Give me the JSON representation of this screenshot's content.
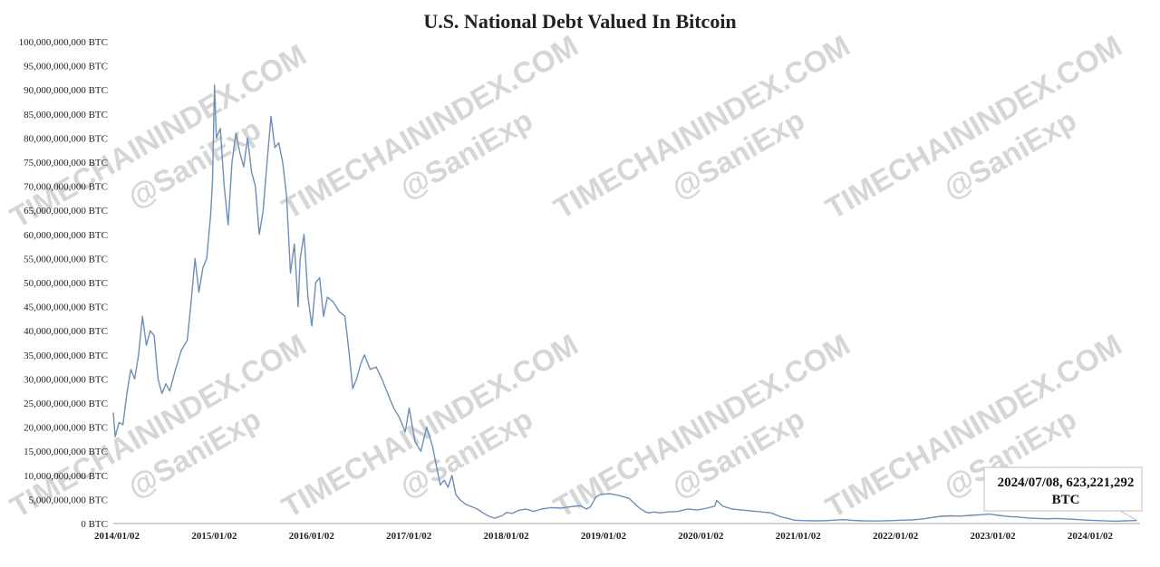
{
  "watermarks": {
    "site": "TIMECHAININDEX.COM",
    "handle": "@SaniExp"
  },
  "chart_data": {
    "type": "line",
    "title": "U.S. National Debt Valued In Bitcoin",
    "xlabel": "",
    "ylabel": "",
    "ylim": [
      0,
      100000000000
    ],
    "y_unit": "BTC",
    "grid": false,
    "legend": "none",
    "line_color": "#6e8fb3",
    "x_ticks": [
      "2014/01/02",
      "2015/01/02",
      "2016/01/02",
      "2017/01/02",
      "2018/01/02",
      "2019/01/02",
      "2020/01/02",
      "2021/01/02",
      "2022/01/02",
      "2023/01/02",
      "2024/01/02"
    ],
    "y_ticks": [
      "0 BTC",
      "5,000,000,000 BTC",
      "10,000,000,000 BTC",
      "15,000,000,000 BTC",
      "20,000,000,000 BTC",
      "25,000,000,000 BTC",
      "30,000,000,000 BTC",
      "35,000,000,000 BTC",
      "40,000,000,000 BTC",
      "45,000,000,000 BTC",
      "50,000,000,000 BTC",
      "55,000,000,000 BTC",
      "60,000,000,000 BTC",
      "65,000,000,000 BTC",
      "70,000,000,000 BTC",
      "75,000,000,000 BTC",
      "80,000,000,000 BTC",
      "85,000,000,000 BTC",
      "90,000,000,000 BTC",
      "95,000,000,000 BTC",
      "100,000,000,000 BTC"
    ],
    "x": [
      2014.0,
      2014.02,
      2014.06,
      2014.1,
      2014.14,
      2014.18,
      2014.22,
      2014.26,
      2014.3,
      2014.34,
      2014.38,
      2014.42,
      2014.46,
      2014.5,
      2014.54,
      2014.58,
      2014.64,
      2014.7,
      2014.76,
      2014.8,
      2014.84,
      2014.88,
      2014.92,
      2014.96,
      2015.0,
      2015.02,
      2015.04,
      2015.06,
      2015.1,
      2015.14,
      2015.18,
      2015.22,
      2015.26,
      2015.3,
      2015.34,
      2015.38,
      2015.42,
      2015.46,
      2015.5,
      2015.54,
      2015.58,
      2015.62,
      2015.66,
      2015.7,
      2015.74,
      2015.78,
      2015.82,
      2015.86,
      2015.9,
      2015.92,
      2015.96,
      2016.0,
      2016.04,
      2016.08,
      2016.12,
      2016.16,
      2016.2,
      2016.26,
      2016.32,
      2016.38,
      2016.42,
      2016.46,
      2016.5,
      2016.54,
      2016.58,
      2016.64,
      2016.7,
      2016.76,
      2016.82,
      2016.88,
      2016.94,
      2017.0,
      2017.04,
      2017.1,
      2017.16,
      2017.22,
      2017.28,
      2017.32,
      2017.36,
      2017.4,
      2017.44,
      2017.48,
      2017.52,
      2017.56,
      2017.62,
      2017.68,
      2017.74,
      2017.8,
      2017.86,
      2017.92,
      2017.96,
      2018.0,
      2018.04,
      2018.1,
      2018.16,
      2018.24,
      2018.32,
      2018.4,
      2018.5,
      2018.6,
      2018.7,
      2018.8,
      2018.86,
      2018.9,
      2018.96,
      2019.0,
      2019.1,
      2019.2,
      2019.3,
      2019.4,
      2019.46,
      2019.5,
      2019.56,
      2019.62,
      2019.7,
      2019.8,
      2019.9,
      2020.0,
      2020.1,
      2020.18,
      2020.2,
      2020.26,
      2020.36,
      2020.46,
      2020.56,
      2020.66,
      2020.76,
      2020.86,
      2020.94,
      2021.0,
      2021.1,
      2021.2,
      2021.3,
      2021.4,
      2021.5,
      2021.6,
      2021.7,
      2021.8,
      2021.9,
      2022.0,
      2022.1,
      2022.2,
      2022.3,
      2022.4,
      2022.5,
      2022.6,
      2022.7,
      2022.8,
      2022.9,
      2023.0,
      2023.1,
      2023.2,
      2023.3,
      2023.4,
      2023.5,
      2023.6,
      2023.7,
      2023.8,
      2023.9,
      2024.0,
      2024.1,
      2024.2,
      2024.3,
      2024.4,
      2024.45,
      2024.52
    ],
    "values": [
      23000000000,
      18000000000,
      21000000000,
      20500000000,
      27000000000,
      32000000000,
      30000000000,
      35000000000,
      43000000000,
      37000000000,
      40000000000,
      39000000000,
      30000000000,
      27000000000,
      29000000000,
      27500000000,
      32000000000,
      36000000000,
      38000000000,
      46000000000,
      55000000000,
      48000000000,
      53000000000,
      55000000000,
      64000000000,
      71000000000,
      91000000000,
      80000000000,
      82000000000,
      70000000000,
      62000000000,
      75000000000,
      81000000000,
      77000000000,
      74000000000,
      80000000000,
      73000000000,
      70000000000,
      60000000000,
      65000000000,
      75000000000,
      84500000000,
      78000000000,
      79000000000,
      75000000000,
      68000000000,
      52000000000,
      58000000000,
      45000000000,
      55000000000,
      60000000000,
      47000000000,
      41000000000,
      50000000000,
      51000000000,
      43000000000,
      47000000000,
      46000000000,
      44000000000,
      43000000000,
      36000000000,
      28000000000,
      30000000000,
      33000000000,
      35000000000,
      32000000000,
      32500000000,
      30000000000,
      27000000000,
      24000000000,
      22000000000,
      19000000000,
      24000000000,
      17000000000,
      15000000000,
      20000000000,
      16000000000,
      12000000000,
      8000000000,
      9000000000,
      7500000000,
      10000000000,
      6000000000,
      5000000000,
      4000000000,
      3500000000,
      3000000000,
      2200000000,
      1500000000,
      1100000000,
      1400000000,
      1700000000,
      2300000000,
      2100000000,
      2700000000,
      3000000000,
      2500000000,
      3000000000,
      3300000000,
      3200000000,
      3500000000,
      3700000000,
      3000000000,
      3400000000,
      5500000000,
      6000000000,
      6200000000,
      5800000000,
      5200000000,
      3300000000,
      2500000000,
      2200000000,
      2400000000,
      2200000000,
      2400000000,
      2500000000,
      3000000000,
      2800000000,
      3200000000,
      3600000000,
      4800000000,
      3600000000,
      3000000000,
      2800000000,
      2600000000,
      2400000000,
      2200000000,
      1400000000,
      1000000000,
      700000000,
      600000000,
      560000000,
      580000000,
      700000000,
      800000000,
      650000000,
      560000000,
      520000000,
      550000000,
      600000000,
      700000000,
      760000000,
      900000000,
      1200000000,
      1500000000,
      1600000000,
      1550000000,
      1700000000,
      1800000000,
      1950000000,
      1700000000,
      1450000000,
      1350000000,
      1150000000,
      1050000000,
      1000000000,
      1050000000,
      950000000,
      820000000,
      720000000,
      620000000,
      540000000,
      490000000,
      560000000,
      600000000,
      623221292
    ],
    "annotation": {
      "date_label": "2024/07/08, 623,221,292",
      "unit_label": "BTC",
      "x": 2024.52,
      "value": 623221292
    }
  }
}
